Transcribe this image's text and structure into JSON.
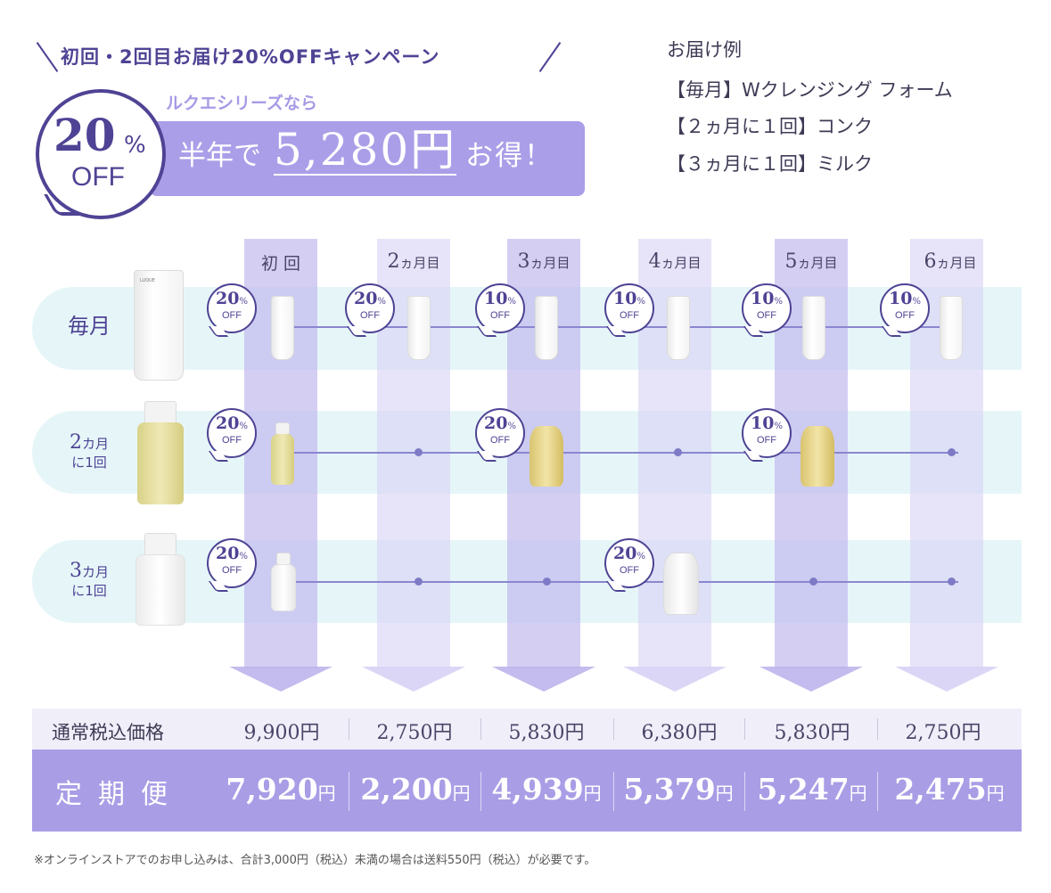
{
  "campaign": {
    "title": "初回・2回目お届け20%OFFキャンペーン",
    "series_label": "ルクエシリーズなら",
    "badge_percent": "20",
    "badge_percent_sign": "%",
    "badge_off": "OFF",
    "banner_pre": "半年で",
    "banner_amount": "5,280円",
    "banner_post": "お得！"
  },
  "example": {
    "heading": "お届け例",
    "items": [
      "【毎月】Wクレンジング フォーム",
      "【２ヵ月に１回】コンク",
      "【３ヵ月に１回】ミルク"
    ]
  },
  "schedule": {
    "columns": [
      {
        "num": "",
        "label": "初 回"
      },
      {
        "num": "2",
        "label": "ヵ月目"
      },
      {
        "num": "3",
        "label": "ヵ月目"
      },
      {
        "num": "4",
        "label": "ヵ月目"
      },
      {
        "num": "5",
        "label": "ヵ月目"
      },
      {
        "num": "6",
        "label": "ヵ月目"
      }
    ],
    "rows": [
      {
        "num": "",
        "line1": "毎月",
        "line2": ""
      },
      {
        "num": "2",
        "line1": "カ月",
        "line2": "に1回"
      },
      {
        "num": "3",
        "line1": "カ月",
        "line2": "に1回"
      }
    ],
    "discounts": {
      "monthly": [
        "20",
        "20",
        "10",
        "10",
        "10",
        "10"
      ],
      "bimonthly": [
        "20",
        "20",
        "10"
      ],
      "trimonthly": [
        "20",
        "20"
      ]
    },
    "percent_sign": "%",
    "off_word": "OFF"
  },
  "prices": {
    "regular_label": "通常税込価格",
    "regular": [
      "9,900円",
      "2,750円",
      "5,830円",
      "6,380円",
      "5,830円",
      "2,750円"
    ],
    "subscription_label": "定期便",
    "subscription": [
      {
        "num": "7,920",
        "unit": "円"
      },
      {
        "num": "2,200",
        "unit": "円"
      },
      {
        "num": "4,939",
        "unit": "円"
      },
      {
        "num": "5,379",
        "unit": "円"
      },
      {
        "num": "5,247",
        "unit": "円"
      },
      {
        "num": "2,475",
        "unit": "円"
      }
    ]
  },
  "note": "※オンラインストアでのお申し込みは、合計3,000円（税込）未満の場合は送料550円（税込）が必要です。",
  "colors": {
    "accent_dark": "#4e4394",
    "accent_light": "#ab9ee8",
    "row_band": "#e6f6f8",
    "column_band": "#cdc6f0"
  }
}
